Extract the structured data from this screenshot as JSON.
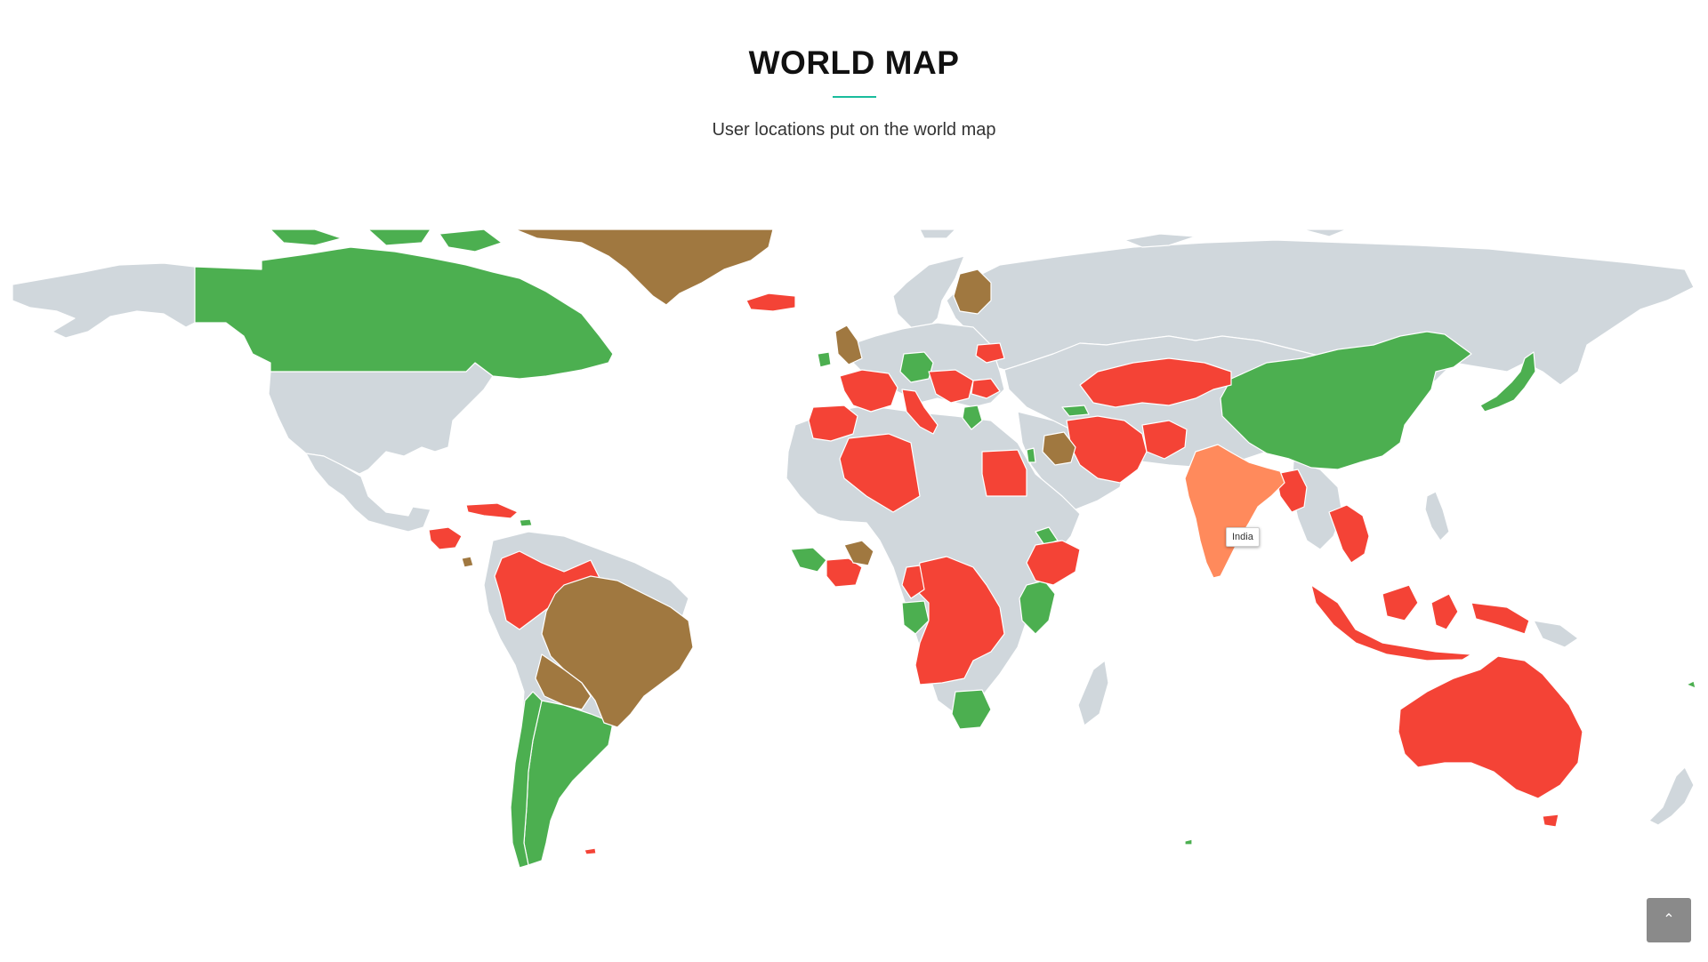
{
  "header": {
    "title": "WORLD MAP",
    "subtitle": "User locations put on the world map"
  },
  "map": {
    "colors": {
      "green": "#4caf50",
      "red": "#f44336",
      "brown": "#a07840",
      "highlight": "#ff8a5c",
      "default": "#d0d7dc"
    },
    "tooltip": {
      "country": "India"
    },
    "countries_green": [
      "Canada",
      "Argentina",
      "Chile",
      "Germany",
      "Ireland",
      "China",
      "Japan",
      "Kenya",
      "Botswana",
      "Equatorial Guinea",
      "Gabon",
      "Eritrea",
      "Guinea",
      "Liberia",
      "Georgia",
      "Israel",
      "Greece",
      "North Korea",
      "Dominican Republic"
    ],
    "countries_red": [
      "Iceland",
      "France",
      "Spain",
      "Portugal",
      "Italy",
      "Austria",
      "Czechia",
      "Hungary",
      "Croatia",
      "Serbia",
      "Romania",
      "Belarus",
      "Kazakhstan",
      "Iran",
      "Afghanistan",
      "Turkmenistan",
      "Algeria",
      "Egypt",
      "Ethiopia",
      "Angola",
      "Democratic Republic of the Congo",
      "Central African Republic",
      "Cameroon",
      "Ghana",
      "Ivory Coast",
      "Colombia",
      "Venezuela",
      "Guatemala",
      "Honduras",
      "Cuba",
      "Haiti",
      "Vietnam",
      "Cambodia",
      "Thailand",
      "Myanmar",
      "Bangladesh",
      "Indonesia",
      "Papua New Guinea",
      "Australia",
      "Falkland Islands"
    ],
    "countries_brown": [
      "Greenland",
      "Finland",
      "United Kingdom",
      "Brazil",
      "Bolivia",
      "Iraq",
      "Burkina Faso",
      "Panama"
    ],
    "countries_highlighted": [
      "India"
    ]
  },
  "scroll_top": {
    "icon": "chevron-up-icon",
    "glyph": "⌃"
  }
}
